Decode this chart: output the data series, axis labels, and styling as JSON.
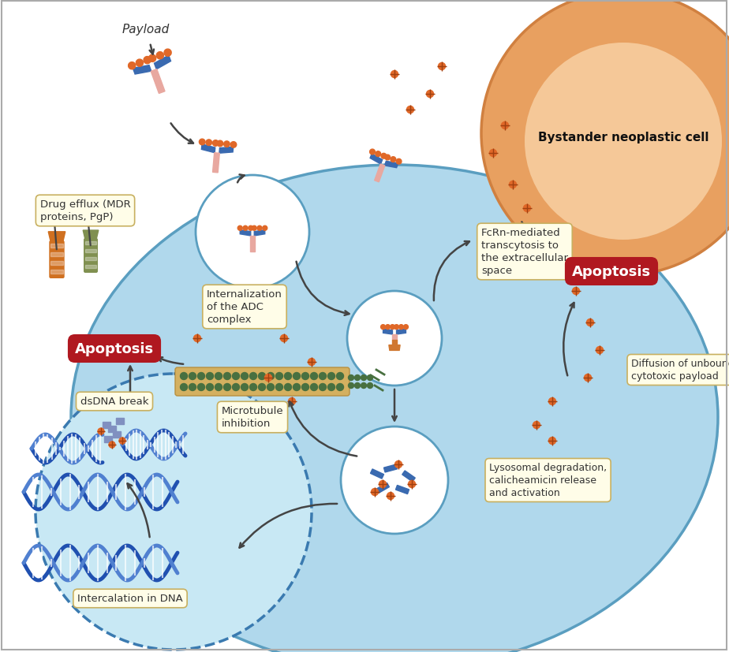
{
  "bg_color": "#ffffff",
  "cell_color": "#b0d8ec",
  "cell_edge_color": "#5a9ec0",
  "nucleus_color": "#c0e0f0",
  "nucleus_edge_color": "#3a7ab0",
  "bystander_outer_color": "#e8a060",
  "bystander_inner_color": "#f5c898",
  "bystander_edge_color": "#d08040",
  "endosome_color": "#ddeef8",
  "endosome_edge_color": "#5a9ec0",
  "box_bg": "#fffde8",
  "box_edge": "#c8b060",
  "apoptosis_bg": "#b01820",
  "apoptosis_text": "#ffffff",
  "label_color": "#333333",
  "payload_label": "Payload",
  "drug_efflux_label": "Drug efflux (MDR\nproteins, PgP)",
  "internalization_label": "Internalization\nof the ADC\ncomplex",
  "fcrn_label": "FcRn-mediated\ntranscytosis to\nthe extracellular\nspace",
  "microtubule_label": "Microtubule\ninhibition",
  "dsdna_label": "dsDNA break",
  "intercalation_label": "Intercalation in DNA",
  "lysosomal_label": "Lysosomal degradation,\ncalicheamicin release\nand activation",
  "diffusion_label": "Diffusion of unbound\ncytotoxic payload",
  "bystander_label": "Bystander neoplastic cell",
  "apoptosis_label": "Apoptosis",
  "antibody_blue": "#3a6ab0",
  "antibody_light_blue": "#6090d0",
  "payload_orange": "#e06828",
  "linker_pink": "#e8a8a0",
  "fcrn_receptor_orange": "#d07830",
  "dna_blue1": "#2050b0",
  "dna_blue2": "#5080d0",
  "microtubule_tan": "#d4b060",
  "microtubule_green": "#406030",
  "protein_orange": "#d07020",
  "protein_green": "#809050"
}
